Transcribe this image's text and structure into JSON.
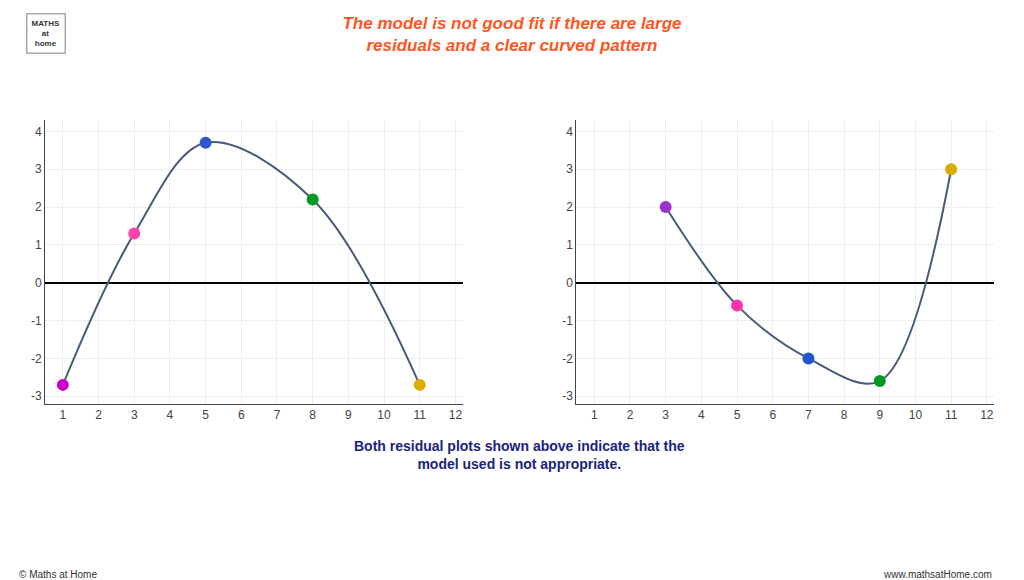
{
  "chart_data": [
    {
      "type": "scatter",
      "title": "The model is not good fit if there are large\nresiduals and a clear curved pattern",
      "title_color": "#FF5522",
      "annotations": [
        "Both residual plots shown above indicate that the\nmodel used is not appropriate.",
        "© Maths at Home",
        "www.mathsatHome.com",
        "MATHS\nat\nhome"
      ],
      "x": [
        1,
        3,
        5,
        8,
        11
      ],
      "values": [
        -2.7,
        1.3,
        3.7,
        2.2,
        -2.7
      ],
      "colors": [
        "#cc00cc",
        "#ff44aa",
        "#3355cc",
        "#009922",
        "#ddaa00"
      ],
      "color": "#4a5a7a",
      "xlim": [
        0.5,
        12.2
      ],
      "ylim": [
        -3.2,
        4.3
      ],
      "xticks": [
        1,
        2,
        3,
        4,
        5,
        6,
        7,
        8,
        9,
        10,
        11,
        12
      ],
      "yticks": [
        -3,
        -2,
        -1,
        0,
        1,
        2,
        3,
        4
      ],
      "grid": true
    },
    {
      "type": "scatter",
      "x": [
        3,
        5,
        7,
        9,
        11
      ],
      "values": [
        2.0,
        -0.6,
        -2.0,
        -2.6,
        3.0
      ],
      "colors": [
        "#9933cc",
        "#ff33aa",
        "#2255cc",
        "#009922",
        "#ddaa00"
      ],
      "color": "#4a5a7a",
      "xlim": [
        0.5,
        12.2
      ],
      "ylim": [
        -3.2,
        4.3
      ],
      "xticks": [
        1,
        2,
        3,
        4,
        5,
        6,
        7,
        8,
        9,
        10,
        11,
        12
      ],
      "yticks": [
        -3,
        -2,
        -1,
        0,
        1,
        2,
        3,
        4
      ],
      "grid": true
    }
  ]
}
